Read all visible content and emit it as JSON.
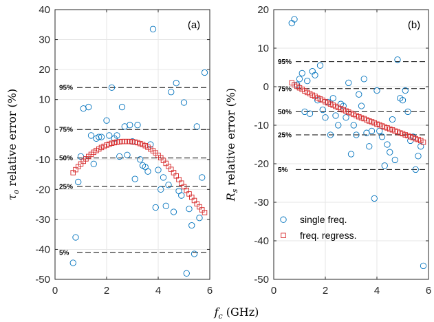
{
  "chart_data": [
    {
      "type": "scatter",
      "panel_label": "(a)",
      "ylabel": "τ_o relative error (%)",
      "ylabel_parts": {
        "symbol": "τ",
        "sub": "o",
        "rest": " relative error (%)"
      },
      "xlim": [
        0,
        6
      ],
      "ylim": [
        -50,
        40
      ],
      "xticks": [
        "0",
        "2",
        "4",
        "6"
      ],
      "yticks": [
        "40",
        "30",
        "20",
        "10",
        "0",
        "-10",
        "-20",
        "-30",
        "-40",
        "-50"
      ],
      "grid": true,
      "percentile_lines": [
        {
          "label": "95%",
          "y": 14
        },
        {
          "label": "75%",
          "y": 0
        },
        {
          "label": "50%",
          "y": -9.5
        },
        {
          "label": "25%",
          "y": -19
        },
        {
          "label": "5%",
          "y": -41
        }
      ],
      "series": [
        {
          "name": "single freq.",
          "marker": "circle",
          "color": "#0072BD",
          "x": [
            0.7,
            0.8,
            0.9,
            1.0,
            1.1,
            1.3,
            1.4,
            1.5,
            1.6,
            1.7,
            1.8,
            2.0,
            2.1,
            2.2,
            2.3,
            2.4,
            2.5,
            2.6,
            2.7,
            2.8,
            2.9,
            3.0,
            3.1,
            3.2,
            3.3,
            3.4,
            3.5,
            3.6,
            3.7,
            3.8,
            3.9,
            4.0,
            4.1,
            4.2,
            4.3,
            4.4,
            4.5,
            4.6,
            4.7,
            4.8,
            4.9,
            5.0,
            5.1,
            5.2,
            5.3,
            5.4,
            5.5,
            5.6,
            5.7,
            5.8
          ],
          "y": [
            -44.5,
            -36,
            -17.5,
            -9,
            7,
            7.5,
            -2,
            -11.5,
            -3,
            -2.5,
            -2.5,
            3,
            -2,
            14,
            -3,
            -2,
            -9,
            7.5,
            1,
            -8.5,
            1.5,
            -4,
            -16.5,
            1.5,
            -10,
            -12,
            -12.5,
            -14,
            -5,
            33.5,
            -26,
            -13.5,
            -20,
            -16,
            -25.5,
            -18.5,
            12.5,
            -27.5,
            15.5,
            -20.5,
            -22,
            9,
            -48,
            -26.5,
            -32,
            -41.5,
            1,
            -29.5,
            -16,
            19
          ]
        },
        {
          "name": "freq. regress.",
          "marker": "square",
          "color": "#D62728",
          "x": [
            0.7,
            0.8,
            0.9,
            1.0,
            1.1,
            1.2,
            1.3,
            1.4,
            1.5,
            1.6,
            1.7,
            1.8,
            1.9,
            2.0,
            2.1,
            2.2,
            2.3,
            2.4,
            2.5,
            2.6,
            2.7,
            2.8,
            2.9,
            3.0,
            3.1,
            3.2,
            3.3,
            3.4,
            3.5,
            3.6,
            3.7,
            3.8,
            3.9,
            4.0,
            4.1,
            4.2,
            4.3,
            4.4,
            4.5,
            4.6,
            4.7,
            4.8,
            4.9,
            5.0,
            5.1,
            5.2,
            5.3,
            5.4,
            5.5,
            5.6,
            5.7,
            5.8
          ],
          "y": [
            -14.4,
            -13.4,
            -12.4,
            -11.5,
            -10.6,
            -9.8,
            -9.0,
            -8.3,
            -7.6,
            -7.0,
            -6.5,
            -6.0,
            -5.6,
            -5.2,
            -4.9,
            -4.6,
            -4.4,
            -4.2,
            -4.1,
            -4.0,
            -4.0,
            -4.0,
            -4.0,
            -4.1,
            -4.2,
            -4.4,
            -4.7,
            -5.0,
            -5.4,
            -5.9,
            -6.5,
            -7.1,
            -7.8,
            -8.6,
            -9.4,
            -10.3,
            -11.3,
            -12.3,
            -13.3,
            -14.4,
            -15.5,
            -16.7,
            -17.9,
            -19.1,
            -20.3,
            -21.5,
            -22.6,
            -23.7,
            -24.8,
            -25.8,
            -26.8,
            -27.7
          ]
        }
      ]
    },
    {
      "type": "scatter",
      "panel_label": "(b)",
      "ylabel": "R_s relative error (%)",
      "ylabel_parts": {
        "symbol": "R",
        "sub": "s",
        "rest": " relative error (%)"
      },
      "xlim": [
        0,
        6
      ],
      "ylim": [
        -50,
        20
      ],
      "xticks": [
        "0",
        "2",
        "4",
        "6"
      ],
      "yticks": [
        "20",
        "10",
        "0",
        "-10",
        "-20",
        "-30",
        "-40",
        "-50"
      ],
      "grid": true,
      "legend": {
        "position": "bottom-left",
        "entries": [
          "single freq.",
          "freq. regress."
        ]
      },
      "percentile_lines": [
        {
          "label": "95%",
          "y": 6.5
        },
        {
          "label": "75%",
          "y": -0.5
        },
        {
          "label": "50%",
          "y": -6.5
        },
        {
          "label": "25%",
          "y": -12.5
        },
        {
          "label": "5%",
          "y": -21.5
        }
      ],
      "series": [
        {
          "name": "single freq.",
          "marker": "circle",
          "color": "#0072BD",
          "x": [
            0.7,
            0.8,
            0.9,
            1.0,
            1.1,
            1.2,
            1.3,
            1.4,
            1.5,
            1.6,
            1.7,
            1.8,
            1.9,
            2.0,
            2.1,
            2.2,
            2.3,
            2.4,
            2.5,
            2.6,
            2.7,
            2.8,
            2.9,
            3.0,
            3.1,
            3.2,
            3.3,
            3.4,
            3.5,
            3.6,
            3.7,
            3.8,
            3.9,
            4.0,
            4.1,
            4.2,
            4.3,
            4.4,
            4.5,
            4.6,
            4.7,
            4.8,
            4.9,
            5.0,
            5.1,
            5.2,
            5.3,
            5.4,
            5.5,
            5.6,
            5.7,
            5.8
          ],
          "y": [
            16.5,
            17.5,
            0.5,
            2,
            3.5,
            -6.5,
            1.5,
            -7,
            4,
            3,
            -3.5,
            5.5,
            -6,
            -8,
            -4,
            -12.5,
            -3,
            -7.5,
            -10,
            -4.5,
            -5,
            -8,
            1,
            -17.5,
            -10,
            -12.5,
            -2,
            -5,
            2,
            -12,
            -15.5,
            -11.5,
            -29,
            -1,
            -11.5,
            -13,
            -20.5,
            -15,
            -17,
            -8.5,
            -19,
            7,
            -3,
            -3.5,
            -1,
            -6.5,
            -14,
            -13,
            -21.5,
            -18,
            -15.5,
            -46.5
          ]
        },
        {
          "name": "freq. regress.",
          "marker": "square",
          "color": "#D62728",
          "x": [
            0.7,
            0.8,
            0.9,
            1.0,
            1.1,
            1.2,
            1.3,
            1.4,
            1.5,
            1.6,
            1.7,
            1.8,
            1.9,
            2.0,
            2.1,
            2.2,
            2.3,
            2.4,
            2.5,
            2.6,
            2.7,
            2.8,
            2.9,
            3.0,
            3.1,
            3.2,
            3.3,
            3.4,
            3.5,
            3.6,
            3.7,
            3.8,
            3.9,
            4.0,
            4.1,
            4.2,
            4.3,
            4.4,
            4.5,
            4.6,
            4.7,
            4.8,
            4.9,
            5.0,
            5.1,
            5.2,
            5.3,
            5.4,
            5.5,
            5.6,
            5.7,
            5.8
          ],
          "y": [
            1.0,
            0.5,
            0.1,
            -0.3,
            -0.7,
            -1.1,
            -1.5,
            -1.8,
            -2.2,
            -2.5,
            -2.9,
            -3.2,
            -3.5,
            -3.9,
            -4.2,
            -4.5,
            -4.8,
            -5.1,
            -5.4,
            -5.7,
            -6.0,
            -6.3,
            -6.6,
            -6.9,
            -7.2,
            -7.5,
            -7.8,
            -8.1,
            -8.3,
            -8.6,
            -8.9,
            -9.1,
            -9.4,
            -9.7,
            -9.9,
            -10.2,
            -10.5,
            -10.7,
            -11.0,
            -11.2,
            -11.5,
            -11.7,
            -12.0,
            -12.2,
            -12.5,
            -12.7,
            -13.0,
            -13.2,
            -13.5,
            -13.7,
            -14.0,
            -14.4
          ]
        }
      ]
    }
  ],
  "shared_xlabel": {
    "symbol": "f",
    "sub": "c",
    "rest": " (GHz)"
  }
}
